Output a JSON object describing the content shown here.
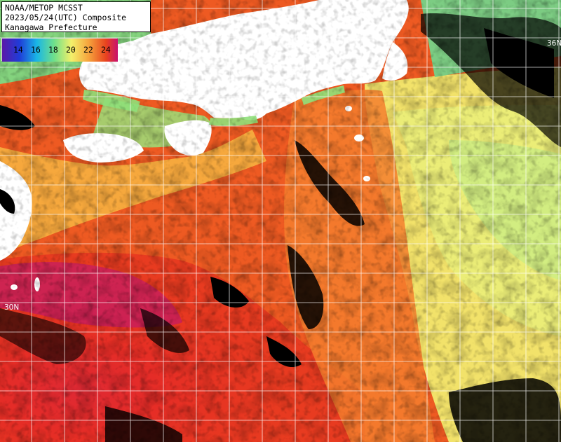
{
  "title": {
    "line1": "NOAA/METOP MCSST",
    "line2": "2023/05/24(UTC) Composite",
    "line3": "Kanagawa Prefecture"
  },
  "legend": {
    "labels": [
      "14",
      "16",
      "18",
      "20",
      "22",
      "24"
    ],
    "colors": [
      "#5a1aa8",
      "#1f3cd8",
      "#19b6e6",
      "#6fe08a",
      "#f4f06a",
      "#f5a23c",
      "#e8421e",
      "#c8106e"
    ]
  },
  "grid_labels": {
    "lat_30": "30N",
    "lat_36": "36N"
  },
  "palette": {
    "land": "#ffffff",
    "cloud": "#000000",
    "grid": "#ffffff"
  }
}
